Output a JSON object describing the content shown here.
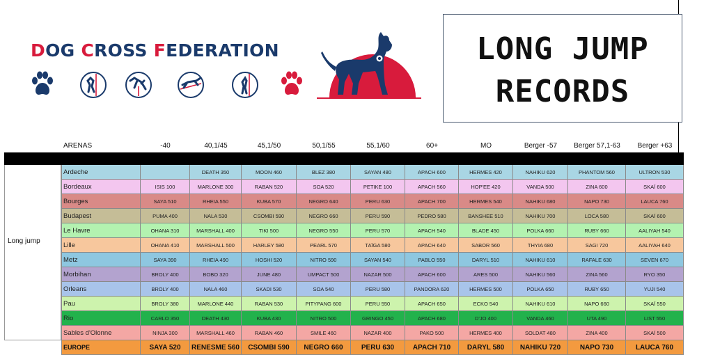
{
  "header": {
    "brand_parts": [
      "D",
      "OG ",
      "C",
      "ROSS ",
      "F",
      "EDERATION"
    ],
    "title_line1": "LONG JUMP",
    "title_line2": "RECORDS"
  },
  "icons": [
    {
      "name": "paw-icon",
      "color": "#1a3a6b"
    },
    {
      "name": "high-jump-icon",
      "color": "#1a3a6b"
    },
    {
      "name": "hurdle-jump-icon",
      "color": "#1a3a6b"
    },
    {
      "name": "long-jump-icon",
      "color": "#1a3a6b"
    },
    {
      "name": "wall-climb-icon",
      "color": "#1a3a6b"
    },
    {
      "name": "paw-icon",
      "color": "#d81b3c"
    }
  ],
  "colors": {
    "brand_blue": "#1a3a6b",
    "brand_red": "#d81b3c"
  },
  "table": {
    "arenas_label": "ARENAS",
    "side_label": "Long jump",
    "columns": [
      "-40",
      "40,1/45",
      "45,1/50",
      "50,1/55",
      "55,1/60",
      "60+",
      "MO",
      "Berger -57",
      "Berger 57,1-63",
      "Berger +63"
    ],
    "rows": [
      {
        "arena": "Ardeche",
        "color": "#a9d6e4",
        "values": [
          "",
          "DEATH 350",
          "MOON 460",
          "BLEZ 380",
          "SAYAN 480",
          "APACH 600",
          "HERMES 420",
          "NAHIKU 620",
          "PHANTOM 560",
          "ULTRON 530"
        ]
      },
      {
        "arena": "Bordeaux",
        "color": "#f3c6ef",
        "values": [
          "ISIS 100",
          "MARLONE 300",
          "RABAN 520",
          "SOA 520",
          "PETIKE 100",
          "APACH 560",
          "HOP'EE 420",
          "VANDA 500",
          "ZINA 600",
          "SKAÏ 600"
        ]
      },
      {
        "arena": "Bourges",
        "color": "#d98a87",
        "values": [
          "SAYA 510",
          "RHEIA 550",
          "KUBA 570",
          "NEGRO 640",
          "PERU 630",
          "APACH 700",
          "HERMES 540",
          "NAHIKU 680",
          "NAPO 730",
          "LAUCA 760"
        ]
      },
      {
        "arena": "Budapest",
        "color": "#c5bd97",
        "values": [
          "PUMA 400",
          "NALA 530",
          "CSOMBI 590",
          "NEGRO 660",
          "PERU 590",
          "PEDRO 580",
          "BANSHEE 510",
          "NAHIKU 700",
          "LOCA 580",
          "SKAÏ 600"
        ]
      },
      {
        "arena": "Le Havre",
        "color": "#b3f2b0",
        "values": [
          "OHANA 310",
          "MARSHALL 400",
          "TIKI 500",
          "NEGRO 550",
          "PERU 570",
          "APACH 540",
          "BLADE 450",
          "POLKA 660",
          "RUBY 660",
          "AALIYAH 540"
        ]
      },
      {
        "arena": "Lille",
        "color": "#f7c79d",
        "values": [
          "OHANA 410",
          "MARSHALL 500",
          "HARLEY 580",
          "PEARL 570",
          "TAÏGA 580",
          "APACH 640",
          "SABOR 560",
          "THYIA 680",
          "SAGI 720",
          "AALIYAH 640"
        ]
      },
      {
        "arena": "Metz",
        "color": "#8ec7e0",
        "values": [
          "SAYA 390",
          "RHEIA 490",
          "HOSHI 520",
          "NITRO 590",
          "SAYAN 540",
          "PABLO 550",
          "DARYL 510",
          "NAHIKU 610",
          "RAFALE 630",
          "SEVEN 670"
        ]
      },
      {
        "arena": "Morbihan",
        "color": "#b3a3cf",
        "values": [
          "BROLY 400",
          "BOBO 320",
          "JUNE 480",
          "UMPACT 500",
          "NAZAR 500",
          "APACH 600",
          "ARES 500",
          "NAHIKU 560",
          "ZINA 560",
          "RYO 350"
        ]
      },
      {
        "arena": "Orleans",
        "color": "#a8c4ea",
        "values": [
          "BROLY 400",
          "NALA 460",
          "SKADI 530",
          "SOA 540",
          "PERU 580",
          "PANDORA 620",
          "HERMES 500",
          "POLKA 650",
          "RUBY 650",
          "YUJI 540"
        ]
      },
      {
        "arena": "Pau",
        "color": "#cdf3ad",
        "values": [
          "BROLY 380",
          "MARLONE 440",
          "RABAN 530",
          "PITYPANG 600",
          "PERU 550",
          "APACH 650",
          "ECKO 540",
          "NAHIKU 610",
          "NAPO 660",
          "SKAÏ 550"
        ]
      },
      {
        "arena": "Rio",
        "color": "#22b24c",
        "values": [
          "CARLO 350",
          "DEATH 430",
          "KUBA 430",
          "NITRO 500",
          "GRINGO 450",
          "APACH 680",
          "D'JO 400",
          "VANDA 460",
          "UTA 490",
          "LIST 550"
        ]
      },
      {
        "arena": "Sables d'Olonne",
        "color": "#f4a7a4",
        "values": [
          "NINJA 300",
          "MARSHALL 460",
          "RABAN 460",
          "SMILE 460",
          "NAZAR 400",
          "PAKO 500",
          "HERMES 400",
          "SOLDAT 480",
          "ZINA 400",
          "SKAÏ 500"
        ]
      }
    ],
    "europe": {
      "arena": "EUROPE",
      "color": "#f39a3f",
      "values": [
        "SAYA 520",
        "RENESME 560",
        "CSOMBI 590",
        "NEGRO 660",
        "PERU 630",
        "APACH 710",
        "DARYL 580",
        "NAHIKU 720",
        "NAPO 730",
        "LAUCA 760"
      ]
    }
  }
}
